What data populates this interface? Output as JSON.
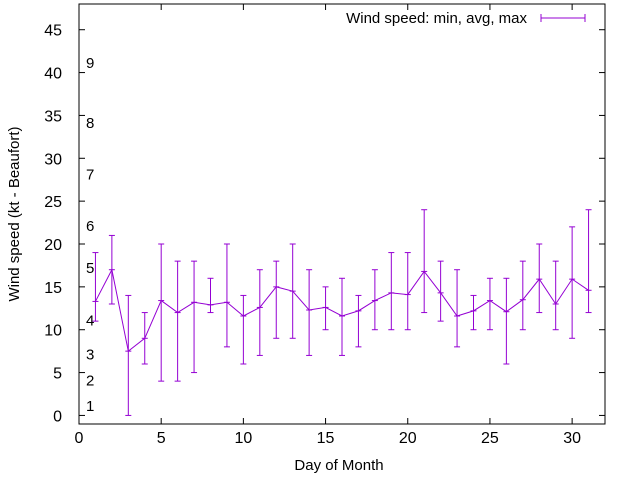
{
  "chart_data": {
    "type": "line",
    "title": "",
    "xlabel": "Day of Month",
    "ylabel": "Wind speed (kt - Beaufort)",
    "xlim": [
      0,
      32
    ],
    "ylim": [
      -1,
      48
    ],
    "x_ticks": [
      0,
      5,
      10,
      15,
      20,
      25,
      30
    ],
    "y_ticks": [
      0,
      5,
      10,
      15,
      20,
      25,
      30,
      35,
      40,
      45
    ],
    "grid": false,
    "legend_position": "top-right",
    "series": [
      {
        "name": "Wind speed: min, avg, max",
        "color": "#9400d3",
        "style": "errorbars",
        "x": [
          1,
          2,
          3,
          4,
          5,
          6,
          7,
          8,
          9,
          10,
          11,
          12,
          13,
          14,
          15,
          16,
          17,
          18,
          19,
          20,
          21,
          22,
          23,
          24,
          25,
          26,
          27,
          28,
          29,
          30,
          31
        ],
        "avg": [
          13.3,
          17,
          7.5,
          9,
          13.4,
          12,
          13.2,
          12.9,
          13.2,
          11.6,
          12.6,
          15,
          14.5,
          12.3,
          12.6,
          11.6,
          12.2,
          13.4,
          14.3,
          14.1,
          16.8,
          14.3,
          11.6,
          12.2,
          13.4,
          12.1,
          13.5,
          15.9,
          13,
          15.9,
          14.6
        ],
        "min": [
          11,
          13,
          0,
          6,
          4,
          4,
          5,
          12,
          8,
          6,
          7,
          9,
          9,
          7,
          10,
          7,
          8,
          10,
          10,
          10,
          12,
          11,
          8,
          10,
          10,
          6,
          10,
          12,
          10,
          9,
          12
        ],
        "max": [
          19,
          21,
          14,
          12,
          20,
          18,
          18,
          16,
          20,
          14,
          17,
          18,
          20,
          17,
          15,
          16,
          14,
          17,
          19,
          19,
          24,
          18,
          17,
          14,
          16,
          16,
          18,
          20,
          18,
          22,
          24
        ]
      }
    ],
    "annotations": [
      {
        "text": "1",
        "y": 1.1
      },
      {
        "text": "2",
        "y": 4.1
      },
      {
        "text": "3",
        "y": 7.1
      },
      {
        "text": "4",
        "y": 11.1
      },
      {
        "text": "5",
        "y": 17.2
      },
      {
        "text": "6",
        "y": 22.1
      },
      {
        "text": "7",
        "y": 28.1
      },
      {
        "text": "8",
        "y": 34.1
      },
      {
        "text": "9",
        "y": 41.1
      }
    ]
  }
}
